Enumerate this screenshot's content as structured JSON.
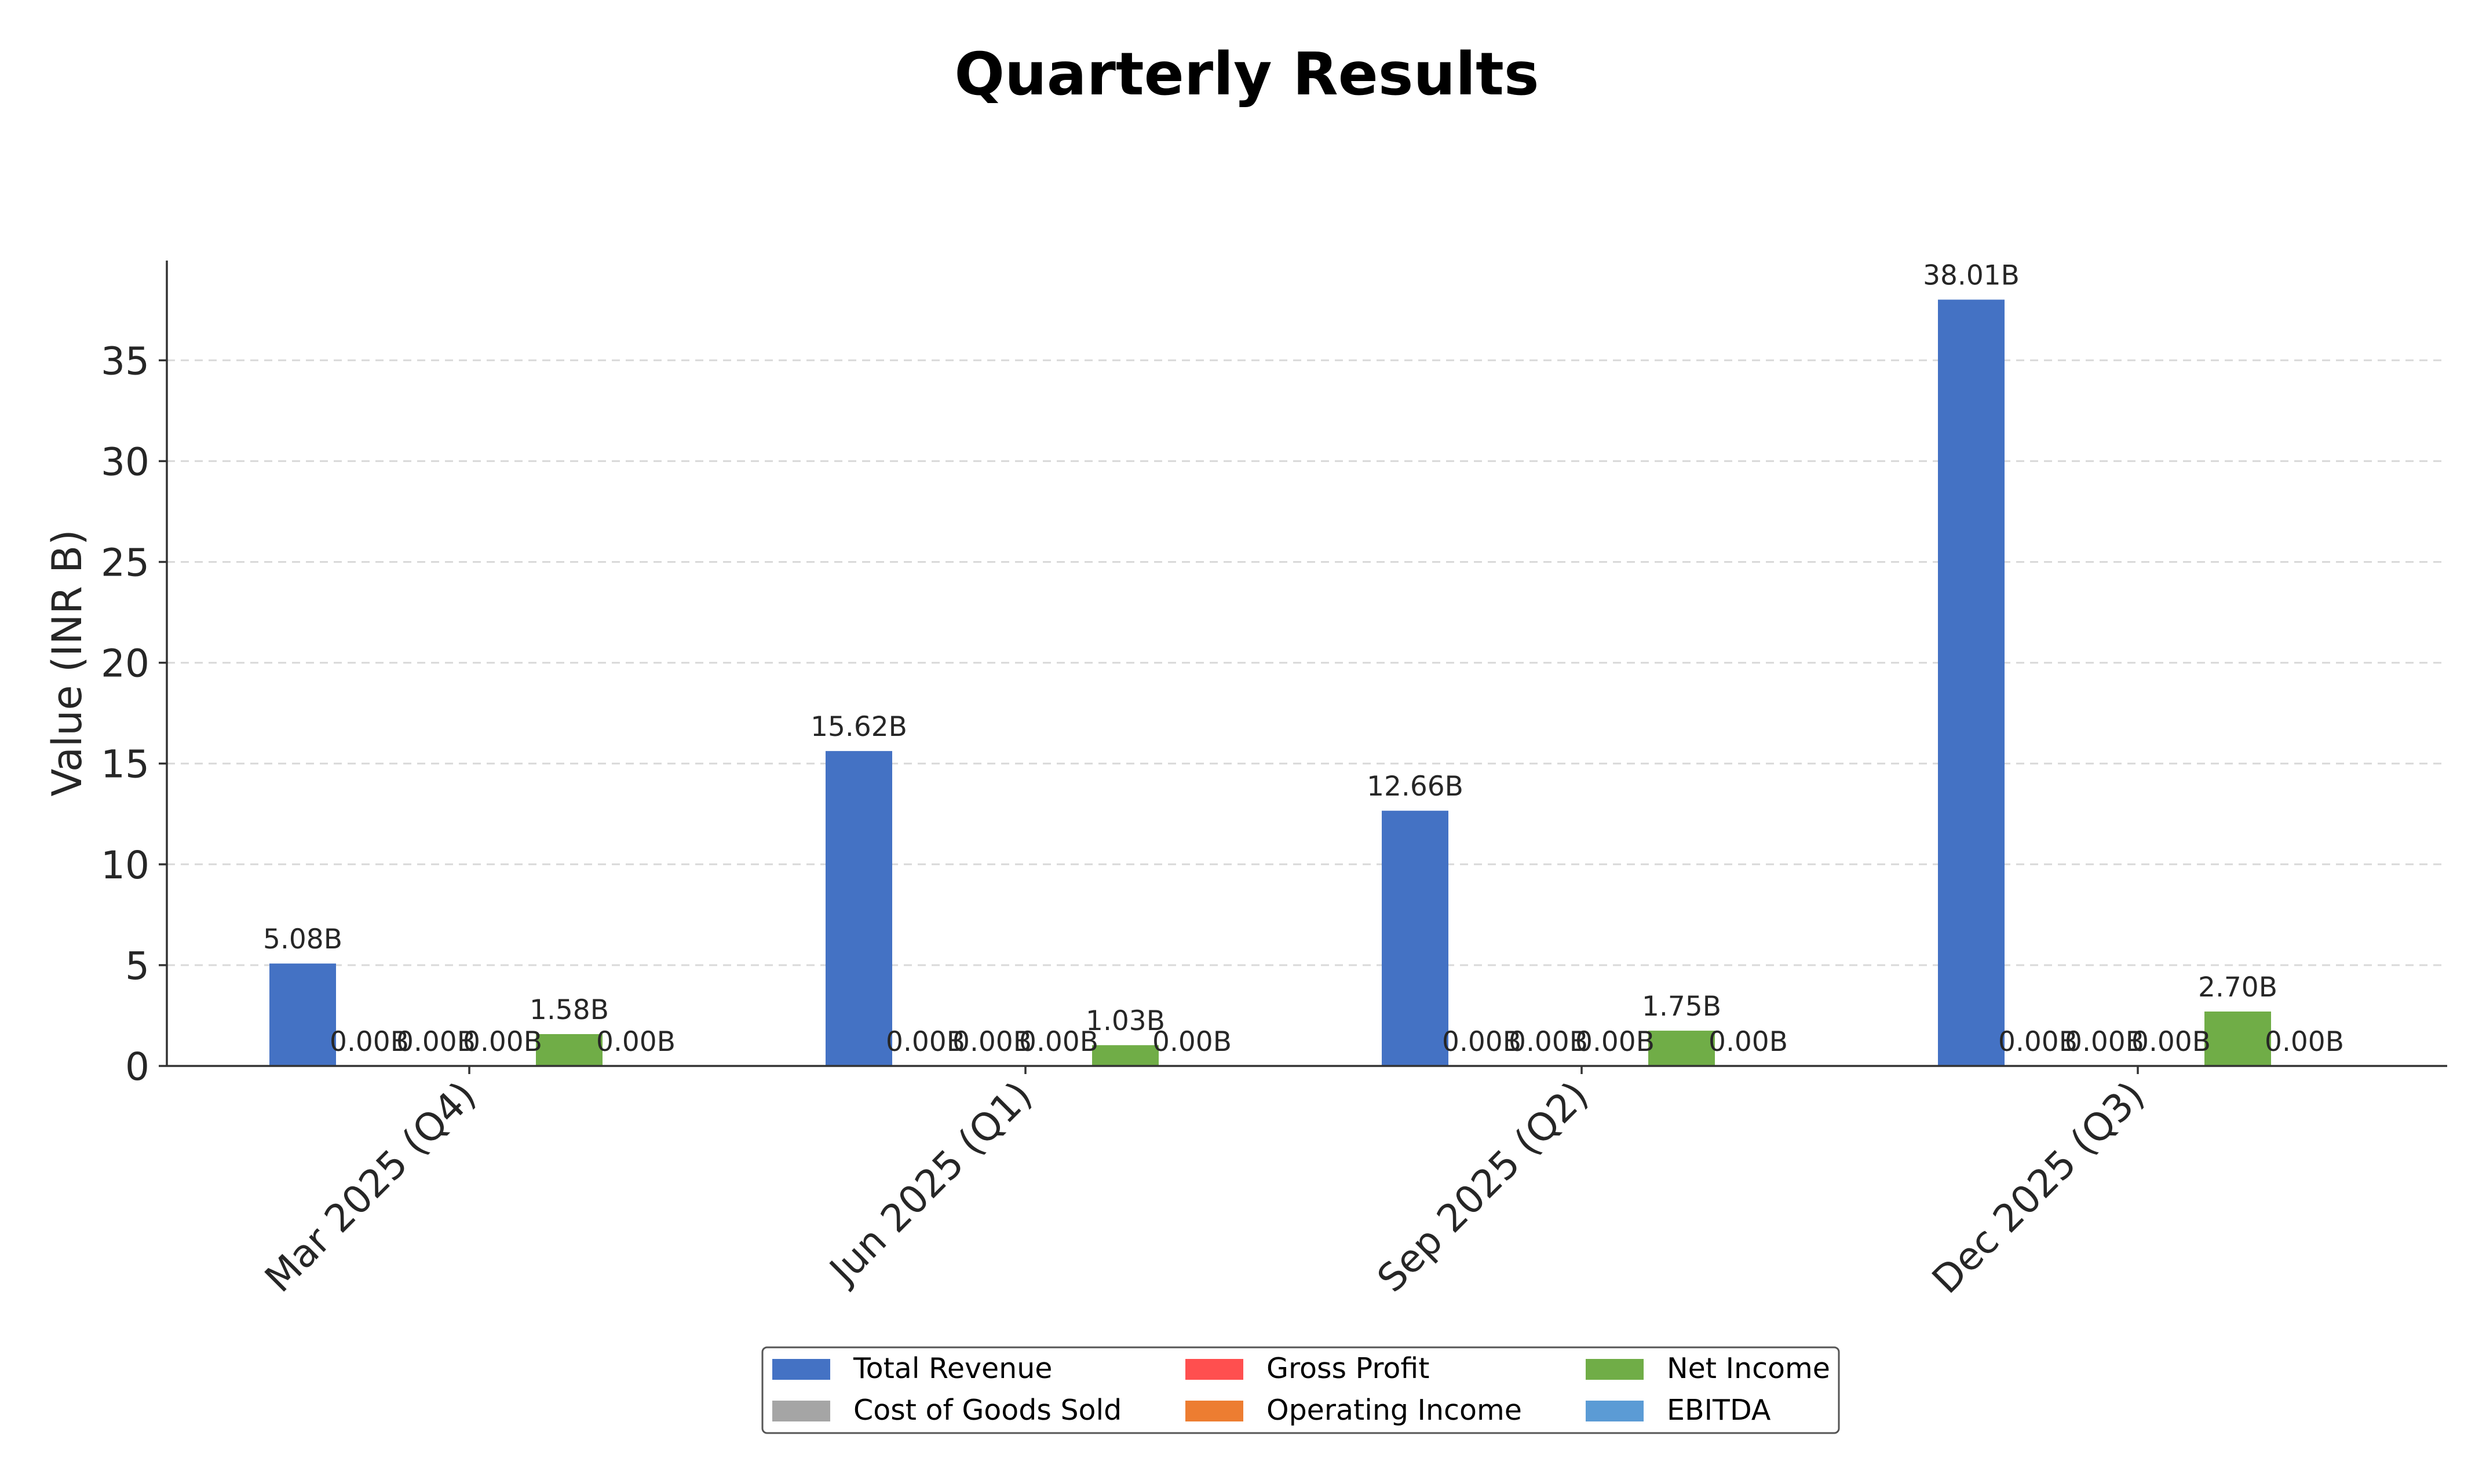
{
  "chart_data": {
    "type": "bar",
    "title": "Quarterly Results",
    "xlabel": "",
    "ylabel": "Value (INR B)",
    "categories": [
      "Mar 2025 (Q4)",
      "Jun 2025 (Q1)",
      "Sep 2025 (Q2)",
      "Dec 2025 (Q3)"
    ],
    "ylim": [
      0,
      40
    ],
    "yticks": [
      0,
      5,
      10,
      15,
      20,
      25,
      30,
      35
    ],
    "grid": "y-dashed",
    "legend_position": "bottom-center",
    "legend_columns": 3,
    "series": [
      {
        "name": "Total Revenue",
        "color": "#4472c4",
        "values": [
          5.08,
          15.62,
          12.66,
          38.01
        ],
        "labels": [
          "5.08B",
          "15.62B",
          "12.66B",
          "38.01B"
        ]
      },
      {
        "name": "Cost of Goods Sold",
        "color": "#a5a5a5",
        "values": [
          0,
          0,
          0,
          0
        ],
        "labels": [
          "0.00B",
          "0.00B",
          "0.00B",
          "0.00B"
        ]
      },
      {
        "name": "Gross Profit",
        "color": "#ff4f4f",
        "values": [
          0,
          0,
          0,
          0
        ],
        "labels": [
          "0.00B",
          "0.00B",
          "0.00B",
          "0.00B"
        ]
      },
      {
        "name": "Operating Income",
        "color": "#ed7d31",
        "values": [
          0,
          0,
          0,
          0
        ],
        "labels": [
          "0.00B",
          "0.00B",
          "0.00B",
          "0.00B"
        ]
      },
      {
        "name": "Net Income",
        "color": "#70ad47",
        "values": [
          1.58,
          1.03,
          1.75,
          2.7
        ],
        "labels": [
          "1.58B",
          "1.03B",
          "1.75B",
          "2.70B"
        ]
      },
      {
        "name": "EBITDA",
        "color": "#5b9bd5",
        "values": [
          0,
          0,
          0,
          0
        ],
        "labels": [
          "0.00B",
          "0.00B",
          "0.00B",
          "0.00B"
        ]
      }
    ]
  }
}
